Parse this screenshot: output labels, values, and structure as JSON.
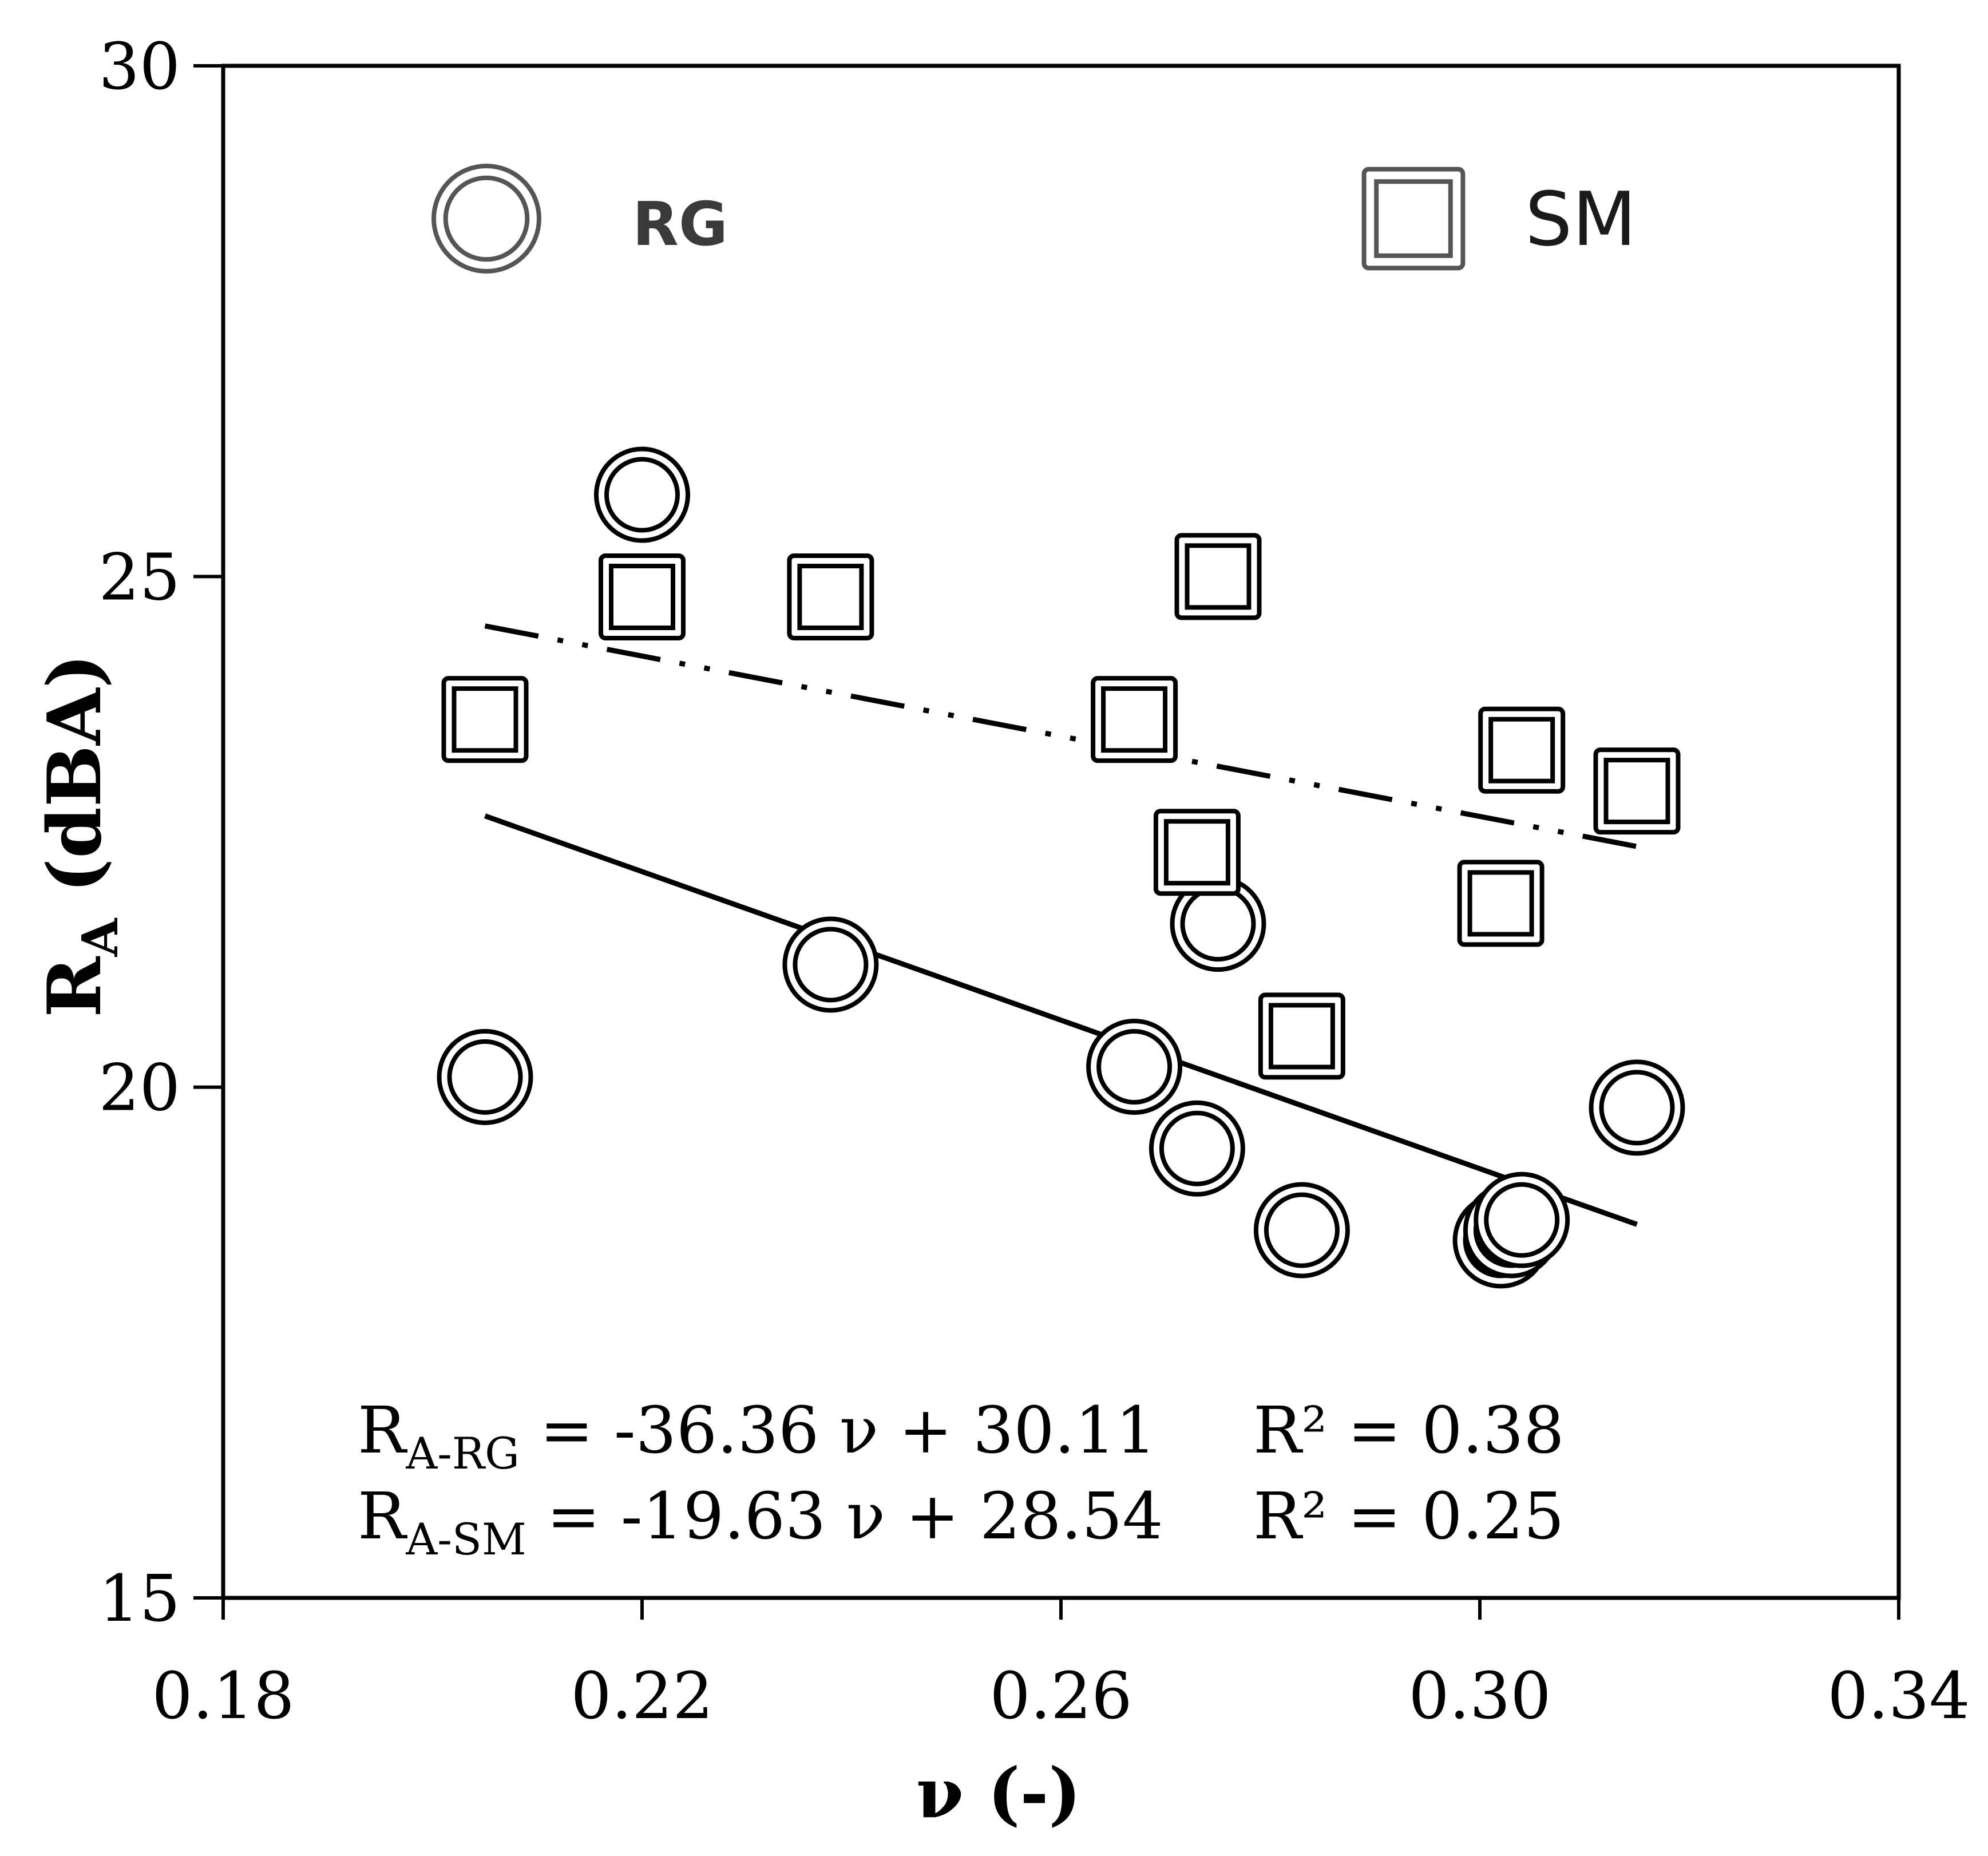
{
  "chart_data": {
    "type": "scatter",
    "title": "",
    "xlabel": "ν (-)",
    "ylabel_main": "R",
    "ylabel_sub": "A",
    "ylabel_unit": " (dBA)",
    "xlim": [
      0.18,
      0.34
    ],
    "ylim": [
      15,
      30
    ],
    "x_ticks": [
      0.18,
      0.22,
      0.26,
      0.3,
      0.34
    ],
    "x_tick_labels": [
      "0.18",
      "0.22",
      "0.26",
      "0.30",
      "0.34"
    ],
    "y_ticks": [
      15,
      20,
      25,
      30
    ],
    "y_tick_labels": [
      "15",
      "20",
      "25",
      "30"
    ],
    "grid": false,
    "series": [
      {
        "name": "RG",
        "marker": "double-circle",
        "points": [
          {
            "x": 0.205,
            "y": 20.1
          },
          {
            "x": 0.22,
            "y": 25.8
          },
          {
            "x": 0.238,
            "y": 21.2
          },
          {
            "x": 0.267,
            "y": 20.2
          },
          {
            "x": 0.273,
            "y": 19.4
          },
          {
            "x": 0.275,
            "y": 21.6
          },
          {
            "x": 0.283,
            "y": 18.6
          },
          {
            "x": 0.302,
            "y": 18.5
          },
          {
            "x": 0.303,
            "y": 18.6
          },
          {
            "x": 0.304,
            "y": 18.7
          },
          {
            "x": 0.315,
            "y": 19.8
          }
        ],
        "fit": {
          "slope": -36.36,
          "intercept": 30.11,
          "x_range": [
            0.205,
            0.315
          ],
          "style": "solid"
        }
      },
      {
        "name": "SM",
        "marker": "double-square",
        "points": [
          {
            "x": 0.205,
            "y": 23.6
          },
          {
            "x": 0.22,
            "y": 24.8
          },
          {
            "x": 0.238,
            "y": 24.8
          },
          {
            "x": 0.267,
            "y": 23.6
          },
          {
            "x": 0.273,
            "y": 22.3
          },
          {
            "x": 0.275,
            "y": 25.0
          },
          {
            "x": 0.283,
            "y": 20.5
          },
          {
            "x": 0.302,
            "y": 21.8
          },
          {
            "x": 0.304,
            "y": 23.3
          },
          {
            "x": 0.315,
            "y": 22.9
          }
        ],
        "fit": {
          "slope": -19.63,
          "intercept": 28.54,
          "x_range": [
            0.205,
            0.315
          ],
          "style": "dash-dot-dot"
        }
      }
    ],
    "legend": [
      {
        "label": "RG",
        "marker": "double-circle"
      },
      {
        "label": "SM",
        "marker": "double-square"
      }
    ],
    "legend_position": "top",
    "annotations": [
      {
        "lhs": "R",
        "sub": "A-RG",
        "rhs": " = -36.36 ν + 30.11",
        "r2": "R² = 0.38"
      },
      {
        "lhs": "R",
        "sub": "A-SM",
        "rhs": " = -19.63 ν + 28.54",
        "r2": "R² = 0.25"
      }
    ]
  }
}
